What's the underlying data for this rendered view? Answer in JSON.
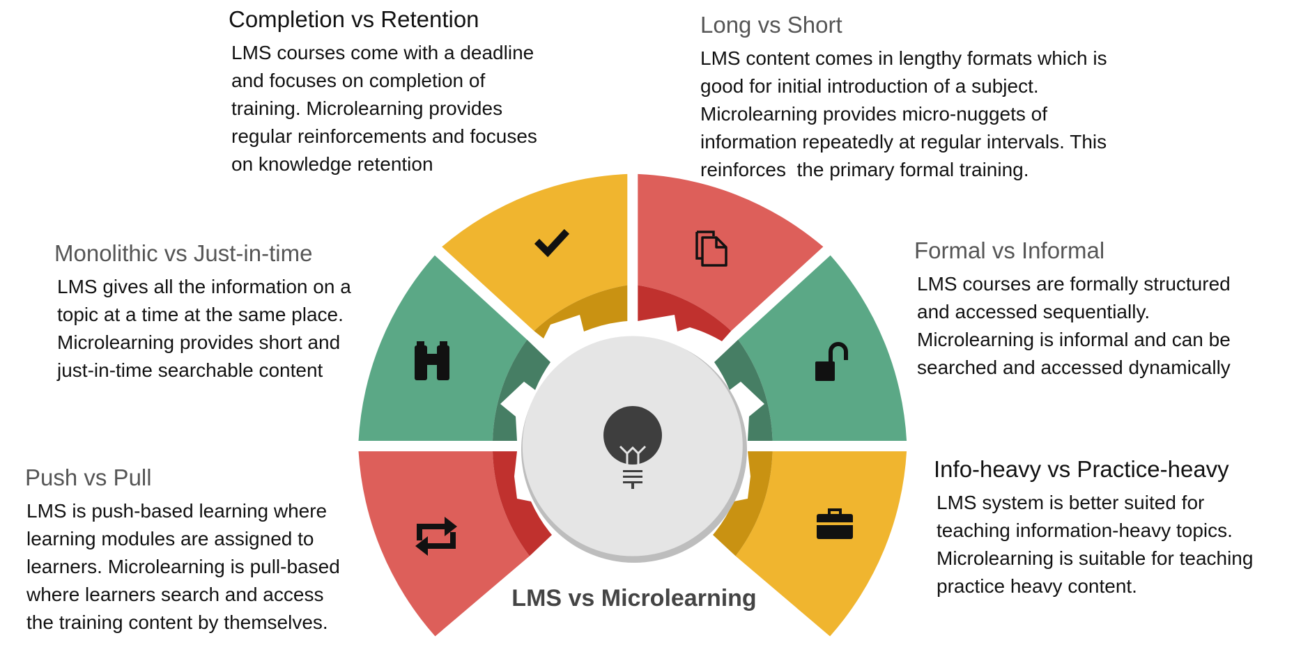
{
  "title": "LMS vs Microlearning",
  "colors": {
    "yellow": "#F0B52F",
    "yellow_dark": "#C99212",
    "red": "#DD5F5A",
    "red_dark": "#C0312E",
    "green": "#5BA886",
    "green_dark": "#467E64",
    "center": "#E5E5E5",
    "icon": "#111111",
    "bulb": "#3E3E3E"
  },
  "segments": [
    {
      "id": "completion",
      "icon": "checkmark-icon",
      "color": "yellow",
      "heading": "Completion vs Retention",
      "lines": [
        "LMS courses come with a deadline",
        "and focuses on completion of",
        "training. Microlearning provides",
        "regular reinforcements and focuses",
        "on knowledge retention"
      ]
    },
    {
      "id": "longshort",
      "icon": "documents-icon",
      "color": "red",
      "heading": "Long vs Short",
      "lines": [
        "LMS content comes in lengthy formats which is",
        "good for initial introduction of a subject.",
        "Microlearning provides micro-nuggets of",
        "information repeatedly at regular intervals. This",
        "reinforces  the primary formal training."
      ]
    },
    {
      "id": "monolithic",
      "icon": "binoculars-icon",
      "color": "green",
      "heading": "Monolithic vs Just-in-time",
      "lines": [
        "LMS gives all the information on a",
        "topic at a time at the same place.",
        "Microlearning provides short and",
        "just-in-time searchable content"
      ]
    },
    {
      "id": "formal",
      "icon": "unlock-icon",
      "color": "green",
      "heading": "Formal vs Informal",
      "lines": [
        "LMS courses are formally structured",
        "and accessed sequentially.",
        "Microlearning is informal and can be",
        "searched and accessed dynamically"
      ]
    },
    {
      "id": "pushpull",
      "icon": "repeat-icon",
      "color": "red",
      "heading": "Push vs Pull",
      "lines": [
        "LMS is push-based learning where",
        "learning modules are assigned to",
        "learners. Microlearning is pull-based",
        "where learners search and access",
        "the training content by themselves."
      ]
    },
    {
      "id": "infoheavy",
      "icon": "briefcase-icon",
      "color": "yellow",
      "heading": "Info-heavy vs Practice-heavy",
      "lines": [
        "LMS system is better suited for",
        "teaching information-heavy topics.",
        "Microlearning is suitable for teaching",
        "practice heavy content."
      ]
    }
  ],
  "center_icon": "lightbulb-icon"
}
